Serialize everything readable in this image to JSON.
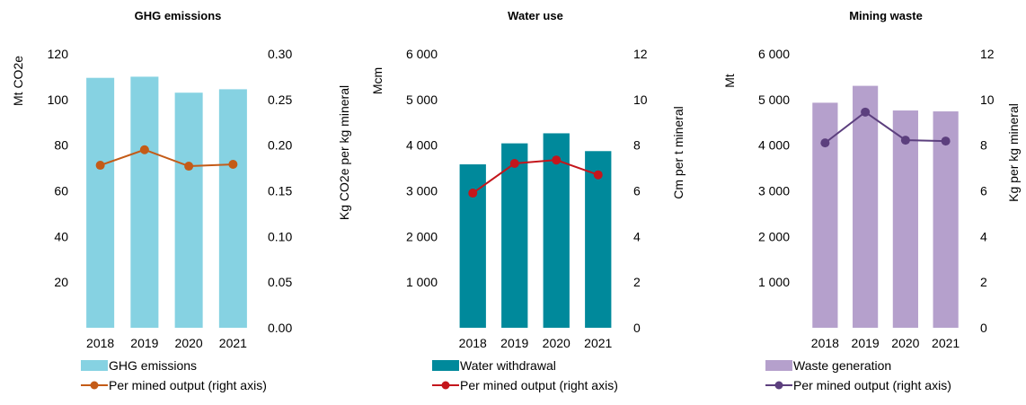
{
  "chart_data": [
    {
      "type": "bar",
      "title": "GHG emissions",
      "categories": [
        "2018",
        "2019",
        "2020",
        "2021"
      ],
      "series": [
        {
          "name": "GHG emissions",
          "type": "bar",
          "axis": "left",
          "color": "#86d2e2",
          "values": [
            109.5,
            110,
            103,
            104.5
          ]
        },
        {
          "name": "Per mined output (right axis)",
          "type": "line",
          "axis": "right",
          "color": "#c45b17",
          "values": [
            0.178,
            0.195,
            0.177,
            0.179
          ]
        }
      ],
      "ylabel": "Mt CO2e",
      "ylim": [
        0,
        120
      ],
      "yticks": [
        "",
        "20",
        "40",
        "60",
        "80",
        "100",
        "120"
      ],
      "y2label": "Kg CO2e per kg mineral",
      "y2lim": [
        0,
        0.3
      ],
      "y2ticks": [
        "0.00",
        "0.05",
        "0.10",
        "0.15",
        "0.20",
        "0.25",
        "0.30"
      ],
      "legend": "bottom"
    },
    {
      "type": "bar",
      "title": "Water use",
      "categories": [
        "2018",
        "2019",
        "2020",
        "2021"
      ],
      "series": [
        {
          "name": "Water withdrawal",
          "type": "bar",
          "axis": "left",
          "color": "#00899b",
          "values": [
            3580,
            4040,
            4260,
            3870
          ]
        },
        {
          "name": "Per mined output (right axis)",
          "type": "line",
          "axis": "right",
          "color": "#c4161c",
          "values": [
            5.9,
            7.2,
            7.35,
            6.7
          ]
        }
      ],
      "ylabel": "Mcm",
      "ylim": [
        0,
        6000
      ],
      "yticks": [
        "",
        "1 000",
        "2 000",
        "3 000",
        "4 000",
        "5 000",
        "6 000"
      ],
      "y2label": "Cm per t mineral",
      "y2lim": [
        0,
        12
      ],
      "y2ticks": [
        "0",
        "2",
        "4",
        "6",
        "8",
        "10",
        "12"
      ],
      "legend": "bottom"
    },
    {
      "type": "bar",
      "title": "Mining waste",
      "categories": [
        "2018",
        "2019",
        "2020",
        "2021"
      ],
      "series": [
        {
          "name": "Waste generation",
          "type": "bar",
          "axis": "left",
          "color": "#b5a0cc",
          "values": [
            4930,
            5300,
            4760,
            4740
          ]
        },
        {
          "name": "Per mined output (right axis)",
          "type": "line",
          "axis": "right",
          "color": "#5c3f7e",
          "values": [
            8.1,
            9.45,
            8.22,
            8.18
          ]
        }
      ],
      "ylabel": "Mt",
      "ylim": [
        0,
        6000
      ],
      "yticks": [
        "",
        "1 000",
        "2 000",
        "3 000",
        "4 000",
        "5 000",
        "6 000"
      ],
      "y2label": "Kg per kg mineral",
      "y2lim": [
        0,
        12
      ],
      "y2ticks": [
        "0",
        "2",
        "4",
        "6",
        "8",
        "10",
        "12"
      ],
      "legend": "bottom"
    }
  ]
}
